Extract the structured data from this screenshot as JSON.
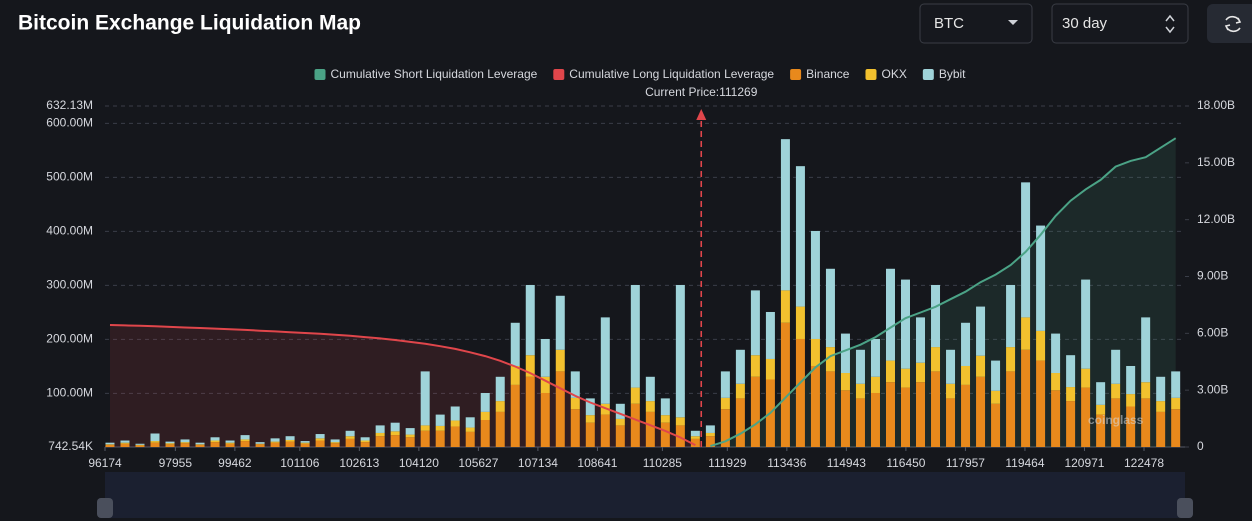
{
  "header": {
    "title": "Bitcoin Exchange Liquidation Map",
    "coin": "BTC",
    "period": "30 day"
  },
  "chart_data": {
    "type": "bar",
    "stacked": true,
    "watermark": "coinglass",
    "current_price": {
      "value": 111269,
      "label": "Current Price:111269",
      "color": "#e0464b"
    },
    "x": [
      96300,
      96680,
      97060,
      97440,
      97820,
      98200,
      98580,
      98960,
      99340,
      99720,
      100100,
      100480,
      100860,
      101240,
      101620,
      102000,
      102380,
      102760,
      103140,
      103520,
      103900,
      104280,
      104660,
      105040,
      105420,
      105800,
      106180,
      106560,
      106940,
      107320,
      107700,
      108080,
      108460,
      108840,
      109220,
      109600,
      109980,
      110360,
      110740,
      111120,
      111500,
      111880,
      112260,
      112640,
      113020,
      113400,
      113780,
      114160,
      114540,
      114920,
      115300,
      115680,
      116060,
      116440,
      116820,
      117200,
      117580,
      117960,
      118340,
      118720,
      119100,
      119480,
      119860,
      120240,
      120620,
      121000,
      121380,
      121760,
      122140,
      122520,
      122900,
      123280
    ],
    "xlim": [
      96174,
      123516
    ],
    "xticks": [
      96174,
      97955,
      99462,
      101106,
      102613,
      104120,
      105627,
      107134,
      108641,
      110285,
      111929,
      113436,
      114943,
      116450,
      117957,
      119464,
      120971,
      122478
    ],
    "ylim": [
      742540,
      632130000
    ],
    "yticks": [
      {
        "value": 742540,
        "label": "742.54K"
      },
      {
        "value": 100000000,
        "label": "100.00M"
      },
      {
        "value": 200000000,
        "label": "200.00M"
      },
      {
        "value": 300000000,
        "label": "300.00M"
      },
      {
        "value": 400000000,
        "label": "400.00M"
      },
      {
        "value": 500000000,
        "label": "500.00M"
      },
      {
        "value": 600000000,
        "label": "600.00M"
      },
      {
        "value": 632130000,
        "label": "632.13M"
      }
    ],
    "y2lim": [
      0,
      18000000000
    ],
    "y2ticks": [
      0,
      {
        "value": 3000000000,
        "label": "3.00B"
      },
      {
        "value": 6000000000,
        "label": "6.00B"
      },
      {
        "value": 9000000000,
        "label": "9.00B"
      },
      {
        "value": 12000000000,
        "label": "12.00B"
      },
      {
        "value": 15000000000,
        "label": "15.00B"
      },
      {
        "value": 18000000000,
        "label": "18.00B"
      }
    ],
    "grid": true,
    "legend": "top",
    "series": [
      {
        "name": "Cumulative Short Liquidation Leverage",
        "type": "line",
        "axis": "y2",
        "color": "#4ba386",
        "values": [
          null,
          null,
          null,
          null,
          null,
          null,
          null,
          null,
          null,
          null,
          null,
          null,
          null,
          null,
          null,
          null,
          null,
          null,
          null,
          null,
          null,
          null,
          null,
          null,
          null,
          null,
          null,
          null,
          null,
          null,
          null,
          null,
          null,
          null,
          null,
          null,
          null,
          null,
          null,
          null,
          50000000,
          300000000,
          700000000,
          1200000000,
          1800000000,
          2600000000,
          3400000000,
          4200000000,
          4800000000,
          5100000000,
          5400000000,
          5800000000,
          6300000000,
          6800000000,
          7100000000,
          7400000000,
          7800000000,
          8200000000,
          8700000000,
          9100000000,
          9600000000,
          10300000000,
          11200000000,
          12200000000,
          13000000000,
          13600000000,
          14100000000,
          14800000000,
          15100000000,
          15300000000,
          15800000000,
          16300000000
        ]
      },
      {
        "name": "Cumulative Long Liquidation Leverage",
        "type": "line",
        "axis": "y2",
        "color": "#e0464b",
        "values": [
          6440000000,
          6420000000,
          6400000000,
          6370000000,
          6340000000,
          6310000000,
          6280000000,
          6250000000,
          6220000000,
          6180000000,
          6140000000,
          6100000000,
          6060000000,
          6020000000,
          5980000000,
          5930000000,
          5870000000,
          5800000000,
          5730000000,
          5650000000,
          5550000000,
          5450000000,
          5320000000,
          5180000000,
          5000000000,
          4800000000,
          4550000000,
          4250000000,
          3900000000,
          3500000000,
          3100000000,
          2700000000,
          2350000000,
          2050000000,
          1750000000,
          1450000000,
          1150000000,
          850000000,
          500000000,
          100000000,
          null,
          null,
          null,
          null,
          null,
          null,
          null,
          null,
          null,
          null,
          null,
          null,
          null,
          null,
          null,
          null,
          null,
          null,
          null,
          null,
          null,
          null,
          null,
          null,
          null,
          null,
          null,
          null,
          null,
          null,
          null,
          null
        ]
      },
      {
        "name": "Binance",
        "type": "bar",
        "color": "#e8891c",
        "values": [
          4000000,
          6000000,
          3000000,
          8000000,
          5000000,
          7000000,
          4000000,
          9000000,
          6000000,
          11000000,
          5000000,
          8000000,
          10000000,
          6000000,
          12000000,
          7000000,
          15000000,
          9000000,
          20000000,
          22000000,
          18000000,
          30000000,
          30000000,
          38000000,
          28000000,
          50000000,
          65000000,
          115000000,
          130000000,
          100000000,
          140000000,
          70000000,
          45000000,
          60000000,
          40000000,
          80000000,
          65000000,
          45000000,
          40000000,
          15000000,
          20000000,
          70000000,
          90000000,
          130000000,
          125000000,
          230000000,
          200000000,
          150000000,
          140000000,
          105000000,
          90000000,
          100000000,
          120000000,
          110000000,
          120000000,
          140000000,
          90000000,
          115000000,
          130000000,
          80000000,
          140000000,
          180000000,
          160000000,
          105000000,
          85000000,
          110000000,
          60000000,
          90000000,
          75000000,
          90000000,
          65000000,
          70000000
        ]
      },
      {
        "name": "OKX",
        "type": "bar",
        "color": "#f2c12e",
        "values": [
          1000000,
          2000000,
          1000000,
          3000000,
          2000000,
          2000000,
          1000000,
          3000000,
          2000000,
          3000000,
          1000000,
          2000000,
          3000000,
          2000000,
          4000000,
          2000000,
          5000000,
          3000000,
          6000000,
          7000000,
          5000000,
          10000000,
          9000000,
          11000000,
          8000000,
          15000000,
          20000000,
          35000000,
          40000000,
          30000000,
          40000000,
          21000000,
          14000000,
          20000000,
          12000000,
          30000000,
          20000000,
          14000000,
          15000000,
          5000000,
          6000000,
          21000000,
          27000000,
          40000000,
          38000000,
          60000000,
          60000000,
          50000000,
          45000000,
          32000000,
          27000000,
          30000000,
          40000000,
          35000000,
          36000000,
          45000000,
          27000000,
          35000000,
          39000000,
          24000000,
          45000000,
          60000000,
          55000000,
          32000000,
          26000000,
          35000000,
          18000000,
          27000000,
          23000000,
          30000000,
          20000000,
          21000000
        ]
      },
      {
        "name": "Bybit",
        "type": "bar",
        "color": "#9fd3d9",
        "values": [
          3000000,
          4000000,
          2000000,
          14000000,
          3000000,
          5000000,
          3000000,
          6000000,
          4000000,
          8000000,
          3000000,
          6000000,
          7000000,
          3000000,
          8000000,
          5000000,
          10000000,
          6000000,
          14000000,
          16000000,
          12000000,
          100000000,
          21000000,
          26000000,
          19000000,
          35000000,
          45000000,
          80000000,
          130000000,
          70000000,
          100000000,
          49000000,
          31000000,
          160000000,
          28000000,
          190000000,
          45000000,
          31000000,
          245000000,
          10000000,
          14000000,
          49000000,
          63000000,
          120000000,
          87000000,
          280000000,
          260000000,
          200000000,
          145000000,
          73000000,
          63000000,
          70000000,
          170000000,
          165000000,
          84000000,
          115000000,
          63000000,
          80000000,
          91000000,
          56000000,
          115000000,
          250000000,
          195000000,
          73000000,
          59000000,
          165000000,
          42000000,
          63000000,
          52000000,
          120000000,
          45000000,
          49000000
        ]
      }
    ]
  }
}
